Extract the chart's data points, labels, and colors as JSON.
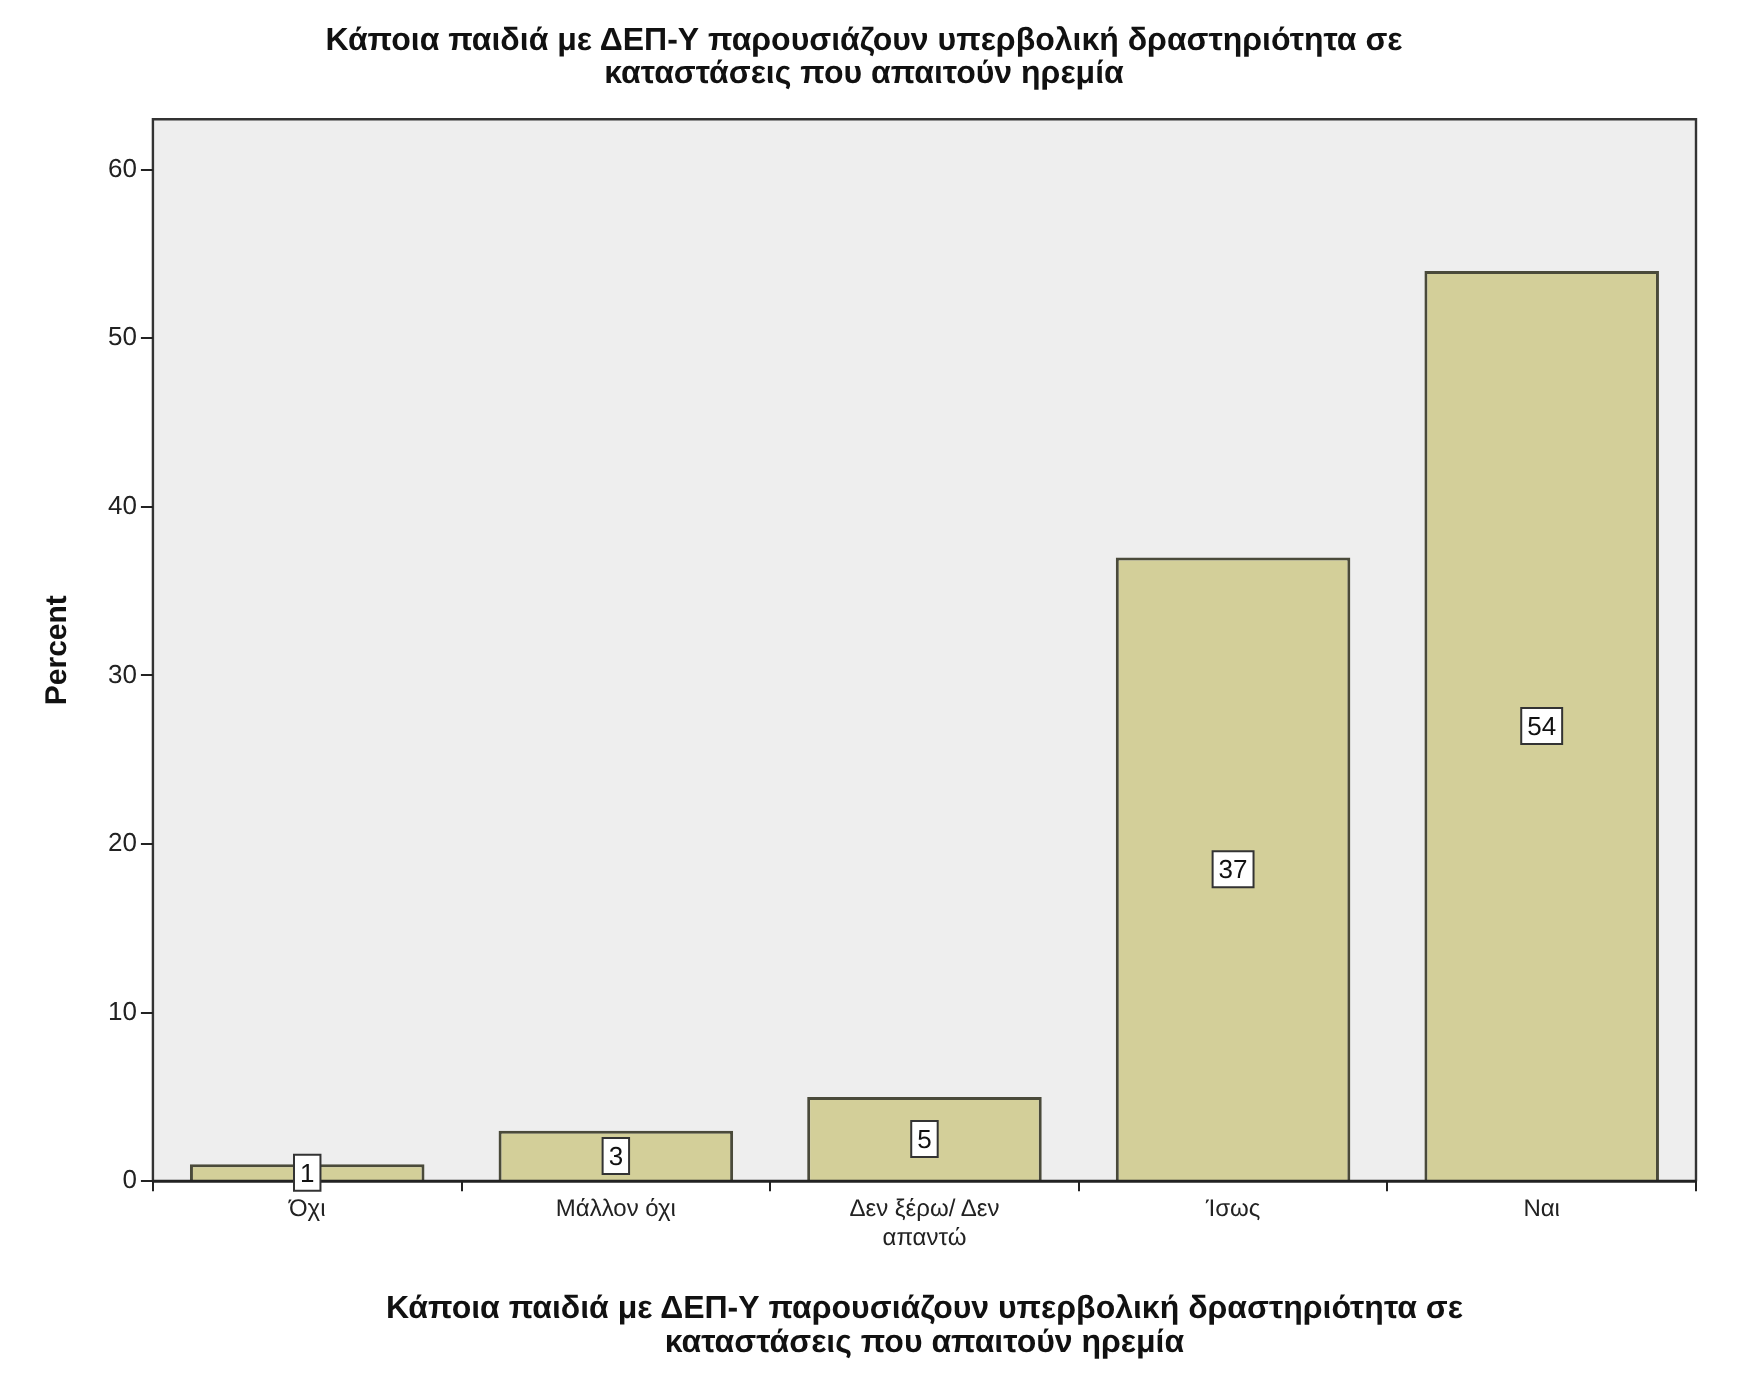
{
  "chart_data": {
    "type": "bar",
    "title": "Κάποια παιδιά με ΔΕΠ-Υ παρουσιάζουν υπερβολική δραστηριότητα σε καταστάσεις που απαιτούν ηρεμία",
    "xlabel": "Κάποια παιδιά με ΔΕΠ-Υ παρουσιάζουν υπερβολική δραστηριότητα σε καταστάσεις που απαιτούν ηρεμία",
    "ylabel": "Percent",
    "categories": [
      "Όχι",
      "Μάλλον όχι",
      "Δεν ξέρω/ Δεν απαντώ",
      "Ίσως",
      "Ναι"
    ],
    "values": [
      1,
      3,
      5,
      37,
      54
    ],
    "color": "#d3cf99",
    "ylim": [
      0,
      63
    ],
    "yticks": [
      0,
      10,
      20,
      30,
      40,
      50,
      60
    ],
    "grid": false,
    "legend": false,
    "data_labels": true
  }
}
